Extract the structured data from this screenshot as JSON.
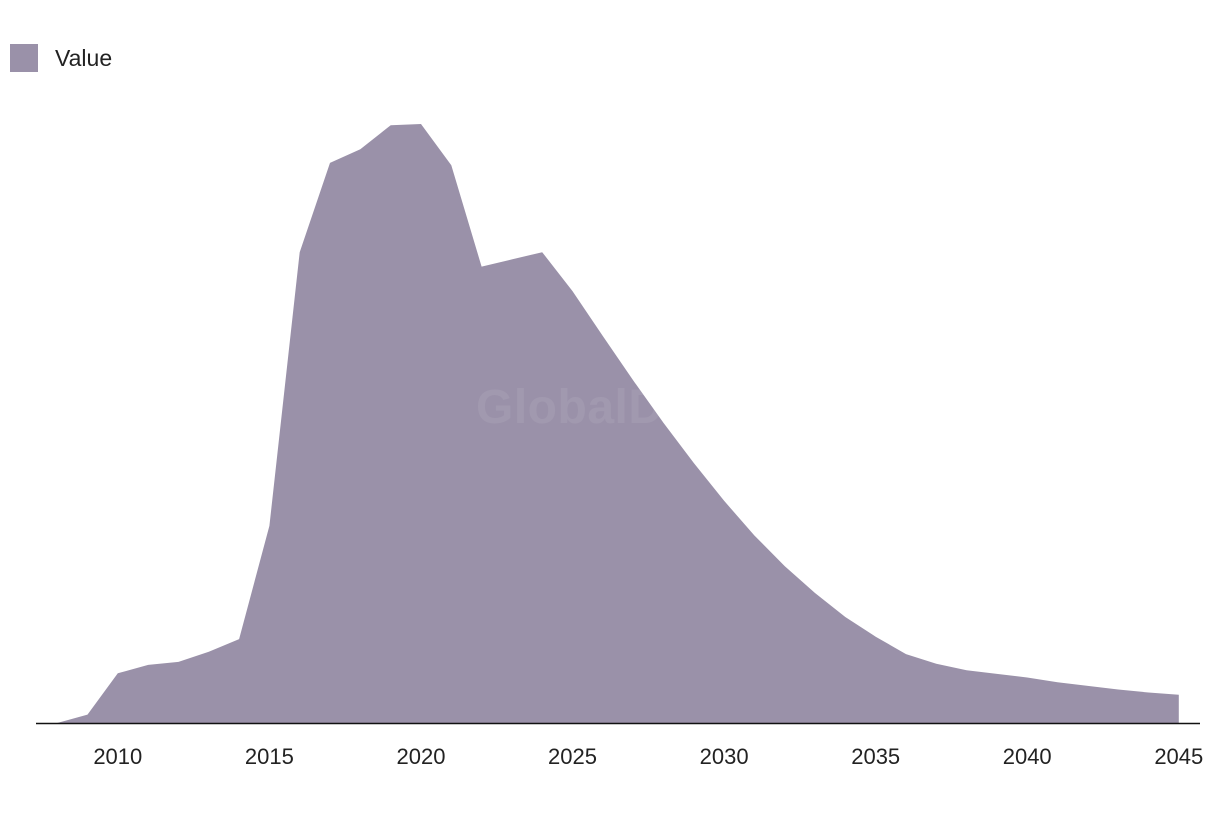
{
  "legend": {
    "label": "Value"
  },
  "watermark": "GlobalData",
  "colors": {
    "area": "#9a91a9",
    "axis": "#111111",
    "tick_text": "#222222"
  },
  "chart_data": {
    "type": "area",
    "title": "",
    "xlabel": "",
    "ylabel": "",
    "grid": false,
    "legend_position": "top-left",
    "xlim": [
      2007.3,
      2045.7
    ],
    "ylim": [
      0,
      100
    ],
    "x_ticks": [
      2010,
      2015,
      2020,
      2025,
      2030,
      2035,
      2040,
      2045
    ],
    "series": [
      {
        "name": "Value",
        "x": [
          2008,
          2009,
          2010,
          2011,
          2012,
          2013,
          2014,
          2015,
          2016,
          2017,
          2018,
          2019,
          2020,
          2021,
          2022,
          2023,
          2024,
          2025,
          2026,
          2027,
          2028,
          2029,
          2030,
          2031,
          2032,
          2033,
          2034,
          2035,
          2036,
          2037,
          2038,
          2039,
          2040,
          2041,
          2042,
          2043,
          2044,
          2045
        ],
        "values": [
          0.0,
          1.4,
          8.3,
          9.7,
          10.2,
          11.9,
          14.0,
          32.9,
          78.6,
          93.5,
          95.8,
          99.8,
          100.0,
          93.1,
          76.2,
          77.4,
          78.6,
          72.1,
          64.6,
          57.2,
          50.1,
          43.4,
          37.1,
          31.3,
          26.2,
          21.7,
          17.7,
          14.4,
          11.5,
          9.9,
          8.8,
          8.2,
          7.6,
          6.8,
          6.2,
          5.6,
          5.1,
          4.7
        ]
      }
    ]
  }
}
